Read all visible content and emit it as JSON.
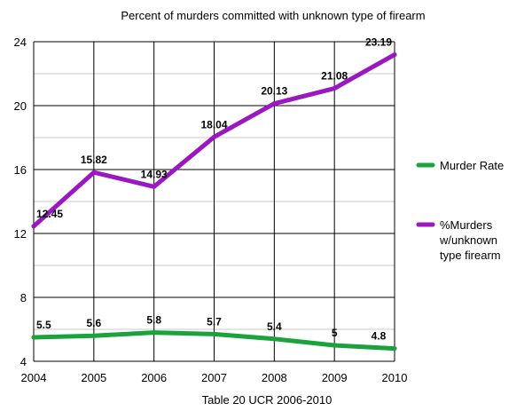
{
  "chart_data": {
    "type": "line",
    "title": "Percent of murders committed with unknown type of firearm",
    "xlabel": "Table 20 UCR 2006-2010",
    "ylabel": "",
    "categories": [
      "2004",
      "2005",
      "2006",
      "2007",
      "2008",
      "2009",
      "2010"
    ],
    "ylim": [
      4,
      24
    ],
    "yticks": [
      "4",
      "8",
      "12",
      "16",
      "20",
      "24"
    ],
    "grid": true,
    "legend_position": "right",
    "series": [
      {
        "name": "Murder Rate",
        "color": "#1aa33a",
        "values": [
          5.5,
          5.6,
          5.8,
          5.7,
          5.4,
          5,
          4.8
        ],
        "labels": [
          "5.5",
          "5.6",
          "5.8",
          "5.7",
          "5.4",
          "5",
          "4.8"
        ]
      },
      {
        "name": "%Murders w/unknown type firearm",
        "name_lines": [
          "%Murders",
          "w/unknown",
          "type firearm"
        ],
        "color": "#9a17c2",
        "values": [
          12.45,
          15.82,
          14.93,
          18.04,
          20.13,
          21.08,
          23.19
        ],
        "labels": [
          "12.45",
          "15.82",
          "14.93",
          "18.04",
          "20.13",
          "21.08",
          "23.19"
        ]
      }
    ]
  }
}
